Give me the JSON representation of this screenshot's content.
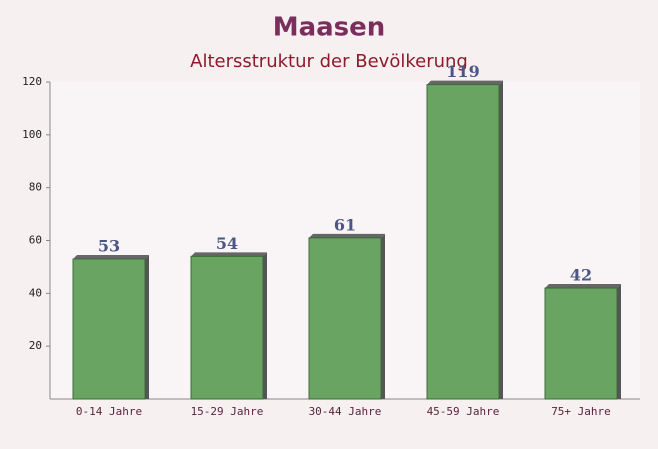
{
  "chart_data": {
    "type": "bar",
    "title": "Maasen",
    "subtitle": "Altersstruktur der Bevölkerung",
    "categories": [
      "0-14 Jahre",
      "15-29 Jahre",
      "30-44 Jahre",
      "45-59 Jahre",
      "75+ Jahre"
    ],
    "values": [
      53,
      54,
      61,
      119,
      42
    ],
    "color": "#6aa463",
    "ylim": [
      0,
      120
    ],
    "yticks": [
      20,
      40,
      60,
      80,
      100,
      120
    ],
    "grid": false
  }
}
